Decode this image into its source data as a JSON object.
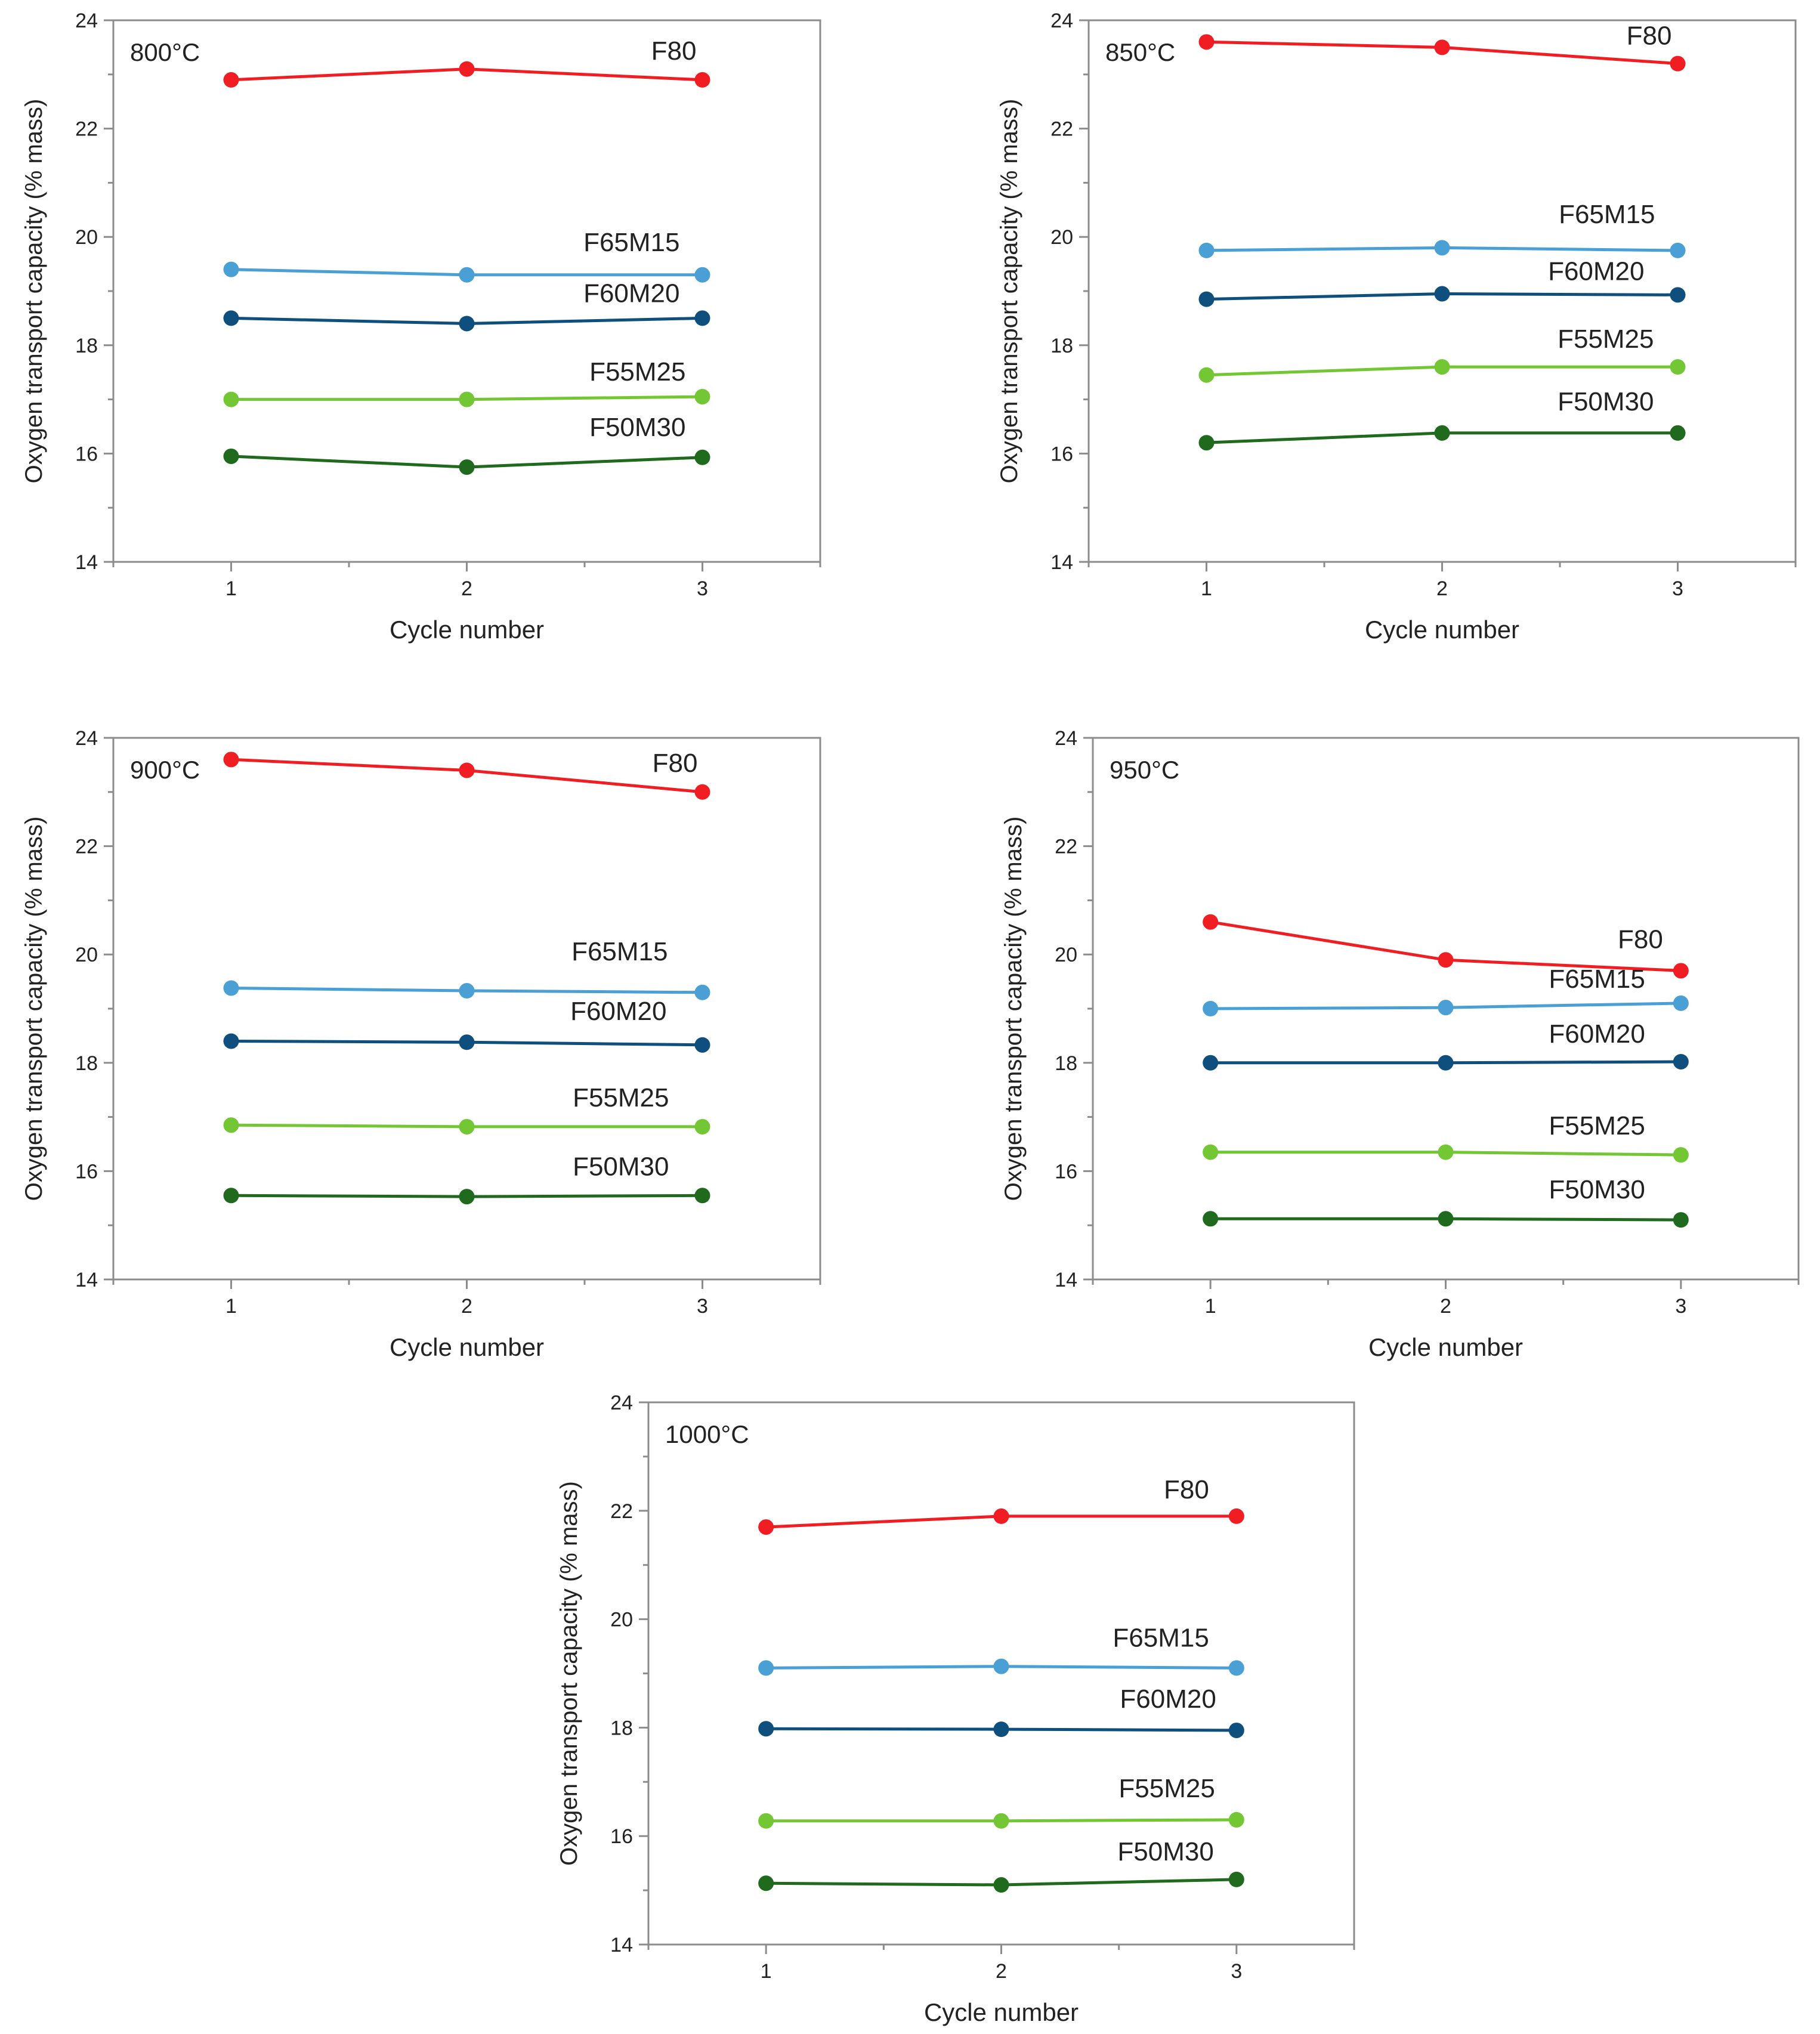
{
  "figure": {
    "colors": {
      "F80": "#f01e23",
      "F65M15": "#4a9fd4",
      "F60M20": "#0f4f7e",
      "F55M25": "#74c734",
      "F50M30": "#1f6a1c",
      "axis": "#8c8c8c",
      "text": "#222222"
    }
  },
  "chart_data": [
    {
      "type": "line",
      "annotation": "800°C",
      "xlabel": "Cycle number",
      "ylabel": "Oxygen transport capacity (% mass)",
      "x": [
        1,
        2,
        3
      ],
      "x_ticks": [
        "1",
        "2",
        "3"
      ],
      "xlim": [
        0.5,
        3.5
      ],
      "ylim": [
        14,
        24
      ],
      "y_ticks": [
        "14",
        "16",
        "18",
        "20",
        "22",
        "24"
      ],
      "grid": false,
      "series": [
        {
          "name": "F80",
          "values": [
            22.9,
            23.1,
            22.9
          ]
        },
        {
          "name": "F65M15",
          "values": [
            19.4,
            19.3,
            19.3
          ]
        },
        {
          "name": "F60M20",
          "values": [
            18.5,
            18.4,
            18.5
          ]
        },
        {
          "name": "F55M25",
          "values": [
            17.0,
            17.0,
            17.05
          ]
        },
        {
          "name": "F50M30",
          "values": [
            15.95,
            15.75,
            15.93
          ]
        }
      ]
    },
    {
      "type": "line",
      "annotation": "850°C",
      "xlabel": "Cycle number",
      "ylabel": "Oxygen transport capacity (% mass)",
      "x": [
        1,
        2,
        3
      ],
      "x_ticks": [
        "1",
        "2",
        "3"
      ],
      "xlim": [
        0.5,
        3.5
      ],
      "ylim": [
        14,
        24
      ],
      "y_ticks": [
        "14",
        "16",
        "18",
        "20",
        "22",
        "24"
      ],
      "grid": false,
      "series": [
        {
          "name": "F80",
          "values": [
            23.6,
            23.5,
            23.2
          ]
        },
        {
          "name": "F65M15",
          "values": [
            19.75,
            19.8,
            19.75
          ]
        },
        {
          "name": "F60M20",
          "values": [
            18.85,
            18.95,
            18.93
          ]
        },
        {
          "name": "F55M25",
          "values": [
            17.45,
            17.6,
            17.6
          ]
        },
        {
          "name": "F50M30",
          "values": [
            16.2,
            16.38,
            16.38
          ]
        }
      ]
    },
    {
      "type": "line",
      "annotation": "900°C",
      "xlabel": "Cycle number",
      "ylabel": "Oxygen transport capacity (% mass)",
      "x": [
        1,
        2,
        3
      ],
      "x_ticks": [
        "1",
        "2",
        "3"
      ],
      "xlim": [
        0.5,
        3.5
      ],
      "ylim": [
        14,
        24
      ],
      "y_ticks": [
        "14",
        "16",
        "18",
        "20",
        "22",
        "24"
      ],
      "grid": false,
      "series": [
        {
          "name": "F80",
          "values": [
            23.6,
            23.4,
            23.0
          ]
        },
        {
          "name": "F65M15",
          "values": [
            19.38,
            19.33,
            19.3
          ]
        },
        {
          "name": "F60M20",
          "values": [
            18.4,
            18.38,
            18.33
          ]
        },
        {
          "name": "F55M25",
          "values": [
            16.85,
            16.82,
            16.82
          ]
        },
        {
          "name": "F50M30",
          "values": [
            15.55,
            15.53,
            15.55
          ]
        }
      ]
    },
    {
      "type": "line",
      "annotation": "950°C",
      "xlabel": "Cycle number",
      "ylabel": "Oxygen transport capacity (% mass)",
      "x": [
        1,
        2,
        3
      ],
      "x_ticks": [
        "1",
        "2",
        "3"
      ],
      "xlim": [
        0.5,
        3.5
      ],
      "ylim": [
        14,
        24
      ],
      "y_ticks": [
        "14",
        "16",
        "18",
        "20",
        "22",
        "24"
      ],
      "grid": false,
      "series": [
        {
          "name": "F80",
          "values": [
            20.6,
            19.9,
            19.7
          ]
        },
        {
          "name": "F65M15",
          "values": [
            19.0,
            19.02,
            19.1
          ]
        },
        {
          "name": "F60M20",
          "values": [
            18.0,
            18.0,
            18.02
          ]
        },
        {
          "name": "F55M25",
          "values": [
            16.35,
            16.35,
            16.3
          ]
        },
        {
          "name": "F50M30",
          "values": [
            15.12,
            15.12,
            15.1
          ]
        }
      ]
    },
    {
      "type": "line",
      "annotation": "1000°C",
      "xlabel": "Cycle number",
      "ylabel": "Oxygen transport capacity (% mass)",
      "x": [
        1,
        2,
        3
      ],
      "x_ticks": [
        "1",
        "2",
        "3"
      ],
      "xlim": [
        0.5,
        3.5
      ],
      "ylim": [
        14,
        24
      ],
      "y_ticks": [
        "14",
        "16",
        "18",
        "20",
        "22",
        "24"
      ],
      "grid": false,
      "series": [
        {
          "name": "F80",
          "values": [
            21.7,
            21.9,
            21.9
          ]
        },
        {
          "name": "F65M15",
          "values": [
            19.1,
            19.13,
            19.1
          ]
        },
        {
          "name": "F60M20",
          "values": [
            17.98,
            17.97,
            17.95
          ]
        },
        {
          "name": "F55M25",
          "values": [
            16.28,
            16.28,
            16.3
          ]
        },
        {
          "name": "F50M30",
          "values": [
            15.13,
            15.1,
            15.2
          ]
        }
      ]
    }
  ]
}
